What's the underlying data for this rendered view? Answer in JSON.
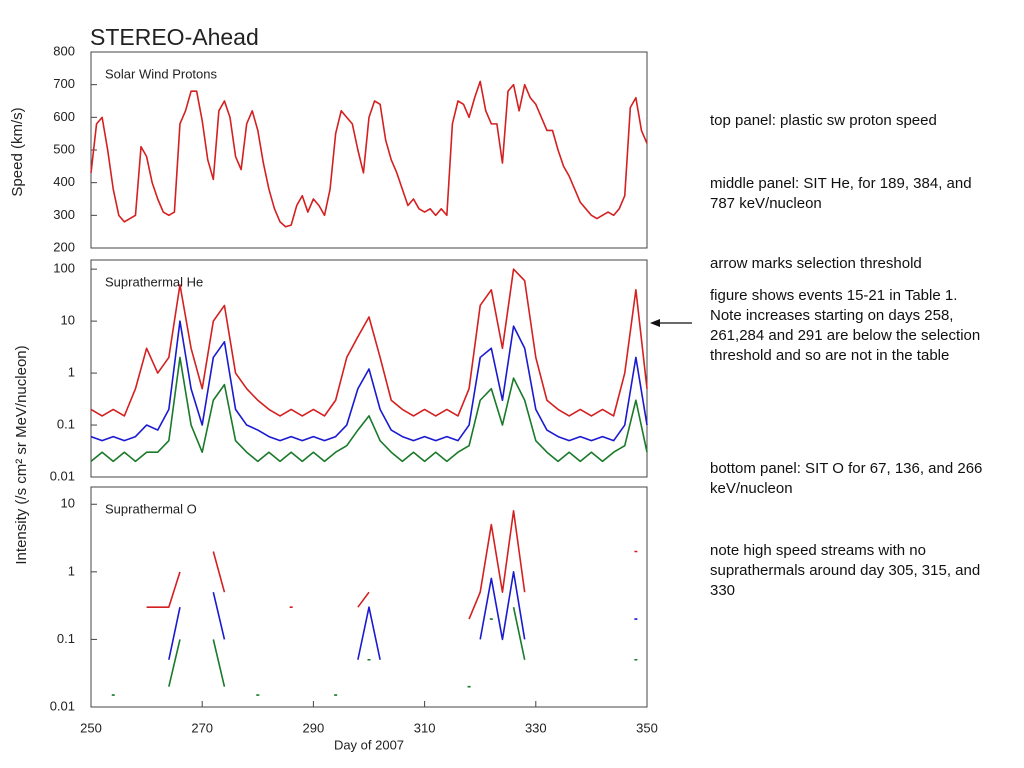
{
  "title": "STEREO-Ahead",
  "notes": [
    "top panel: plastic sw proton speed",
    "middle panel:  SIT He, for 189, 384, and 787 keV/nucleon",
    "arrow marks selection threshold",
    "figure shows events 15-21 in Table 1.  Note increases starting on days 258, 261,284 and 291 are below the selection threshold and so are not in the table",
    "bottom panel:  SIT O for 67, 136, and 266 keV/nucleon",
    "note high speed streams with no suprathermals around day 305, 315, and 330"
  ],
  "chart_data": [
    {
      "type": "line",
      "panel_label": "Solar Wind Protons",
      "y_label": "Speed (km/s)",
      "log": false,
      "xlim": [
        250,
        350
      ],
      "ylim": [
        200,
        800
      ],
      "yticks": [
        200,
        300,
        400,
        500,
        600,
        700,
        800
      ],
      "x": [
        250,
        251,
        252,
        253,
        254,
        255,
        256,
        257,
        258,
        259,
        260,
        261,
        262,
        263,
        264,
        265,
        266,
        267,
        268,
        269,
        270,
        271,
        272,
        273,
        274,
        275,
        276,
        277,
        278,
        279,
        280,
        281,
        282,
        283,
        284,
        285,
        286,
        287,
        288,
        289,
        290,
        291,
        292,
        293,
        294,
        295,
        296,
        297,
        298,
        299,
        300,
        301,
        302,
        303,
        304,
        305,
        306,
        307,
        308,
        309,
        310,
        311,
        312,
        313,
        314,
        315,
        316,
        317,
        318,
        319,
        320,
        321,
        322,
        323,
        324,
        325,
        326,
        327,
        328,
        329,
        330,
        331,
        332,
        333,
        334,
        335,
        336,
        337,
        338,
        339,
        340,
        341,
        342,
        343,
        344,
        345,
        346,
        347,
        348,
        349,
        350
      ],
      "series": [
        {
          "color": "#d42020",
          "values": [
            430,
            580,
            600,
            500,
            380,
            300,
            280,
            290,
            300,
            510,
            480,
            400,
            350,
            310,
            300,
            310,
            580,
            620,
            680,
            680,
            590,
            470,
            410,
            620,
            650,
            600,
            480,
            440,
            580,
            620,
            560,
            460,
            380,
            320,
            280,
            265,
            270,
            330,
            360,
            310,
            350,
            330,
            300,
            380,
            550,
            620,
            600,
            580,
            500,
            430,
            600,
            650,
            640,
            530,
            470,
            430,
            380,
            330,
            350,
            320,
            310,
            320,
            300,
            320,
            300,
            580,
            650,
            640,
            600,
            660,
            710,
            620,
            580,
            580,
            460,
            680,
            700,
            620,
            700,
            660,
            640,
            600,
            560,
            560,
            500,
            450,
            420,
            380,
            340,
            320,
            300,
            290,
            300,
            310,
            300,
            320,
            360,
            630,
            660,
            560,
            520
          ]
        }
      ]
    },
    {
      "type": "line",
      "panel_label": "Suprathermal He",
      "y_label": "Intensity (/s cm² sr MeV/nucleon)",
      "log": true,
      "xlim": [
        250,
        350
      ],
      "ylim": [
        0.01,
        150
      ],
      "yticks": [
        0.01,
        0.1,
        1,
        10,
        100
      ],
      "x": [
        250,
        252,
        254,
        256,
        258,
        260,
        262,
        264,
        266,
        268,
        270,
        272,
        274,
        276,
        278,
        280,
        282,
        284,
        286,
        288,
        290,
        292,
        294,
        296,
        298,
        300,
        302,
        304,
        306,
        308,
        310,
        312,
        314,
        316,
        318,
        320,
        322,
        324,
        326,
        328,
        330,
        332,
        334,
        336,
        338,
        340,
        342,
        344,
        346,
        348,
        350
      ],
      "series": [
        {
          "color": "#d42020",
          "values": [
            0.2,
            0.15,
            0.2,
            0.15,
            0.5,
            3,
            1,
            2,
            50,
            3,
            0.5,
            10,
            20,
            1,
            0.5,
            0.3,
            0.2,
            0.15,
            0.2,
            0.15,
            0.2,
            0.15,
            0.3,
            2,
            5,
            12,
            2,
            0.3,
            0.2,
            0.15,
            0.2,
            0.15,
            0.2,
            0.15,
            0.5,
            20,
            40,
            3,
            100,
            60,
            2,
            0.3,
            0.2,
            0.15,
            0.2,
            0.15,
            0.2,
            0.15,
            1,
            40,
            0.5
          ]
        },
        {
          "color": "#1a1ad0",
          "values": [
            0.06,
            0.05,
            0.06,
            0.05,
            0.06,
            0.1,
            0.08,
            0.2,
            10,
            0.5,
            0.1,
            2,
            4,
            0.2,
            0.1,
            0.08,
            0.06,
            0.05,
            0.06,
            0.05,
            0.06,
            0.05,
            0.06,
            0.1,
            0.5,
            1.2,
            0.2,
            0.08,
            0.06,
            0.05,
            0.06,
            0.05,
            0.06,
            0.05,
            0.1,
            2,
            3,
            0.3,
            8,
            3,
            0.2,
            0.08,
            0.06,
            0.05,
            0.06,
            0.05,
            0.06,
            0.05,
            0.1,
            2,
            0.1
          ]
        },
        {
          "color": "#1a7a2a",
          "values": [
            0.02,
            0.03,
            0.02,
            0.03,
            0.02,
            0.03,
            0.03,
            0.05,
            2,
            0.1,
            0.03,
            0.3,
            0.6,
            0.05,
            0.03,
            0.02,
            0.03,
            0.02,
            0.03,
            0.02,
            0.03,
            0.02,
            0.03,
            0.04,
            0.08,
            0.15,
            0.05,
            0.03,
            0.02,
            0.03,
            0.02,
            0.03,
            0.02,
            0.03,
            0.04,
            0.3,
            0.5,
            0.1,
            0.8,
            0.3,
            0.05,
            0.03,
            0.02,
            0.03,
            0.02,
            0.03,
            0.02,
            0.03,
            0.04,
            0.3,
            0.03
          ]
        }
      ]
    },
    {
      "type": "line",
      "panel_label": "Suprathermal O",
      "x_label": "Day of 2007",
      "log": true,
      "xlim": [
        250,
        350
      ],
      "xticks": [
        250,
        270,
        290,
        310,
        330,
        350
      ],
      "ylim": [
        0.01,
        18
      ],
      "yticks": [
        0.01,
        0.1,
        1,
        10
      ],
      "x": [
        250,
        252,
        254,
        256,
        258,
        260,
        262,
        264,
        266,
        268,
        270,
        272,
        274,
        276,
        278,
        280,
        282,
        284,
        286,
        288,
        290,
        292,
        294,
        296,
        298,
        300,
        302,
        304,
        306,
        308,
        310,
        312,
        314,
        316,
        318,
        320,
        322,
        324,
        326,
        328,
        330,
        332,
        334,
        336,
        338,
        340,
        342,
        344,
        346,
        348,
        350
      ],
      "series": [
        {
          "color": "#d42020",
          "values": [
            null,
            null,
            null,
            null,
            null,
            0.3,
            0.3,
            0.3,
            1,
            null,
            null,
            2,
            0.5,
            null,
            null,
            null,
            null,
            null,
            0.3,
            null,
            null,
            null,
            null,
            null,
            0.3,
            0.5,
            null,
            null,
            null,
            null,
            null,
            null,
            null,
            null,
            0.2,
            0.5,
            5,
            0.5,
            8,
            0.5,
            null,
            null,
            null,
            null,
            null,
            null,
            null,
            null,
            null,
            2,
            null
          ]
        },
        {
          "color": "#1a1ad0",
          "values": [
            null,
            null,
            null,
            null,
            null,
            null,
            null,
            0.05,
            0.3,
            null,
            null,
            0.5,
            0.1,
            null,
            null,
            null,
            null,
            null,
            null,
            null,
            null,
            null,
            null,
            null,
            0.05,
            0.3,
            0.05,
            null,
            null,
            null,
            null,
            null,
            null,
            null,
            null,
            0.1,
            0.8,
            0.1,
            1,
            0.1,
            null,
            null,
            null,
            null,
            null,
            null,
            null,
            null,
            null,
            0.2,
            null
          ]
        },
        {
          "color": "#1a7a2a",
          "values": [
            null,
            null,
            0.015,
            null,
            null,
            null,
            null,
            0.02,
            0.1,
            null,
            null,
            0.1,
            0.02,
            null,
            null,
            0.015,
            null,
            null,
            null,
            null,
            null,
            null,
            0.015,
            null,
            null,
            0.05,
            null,
            null,
            null,
            null,
            null,
            null,
            null,
            null,
            0.02,
            null,
            0.2,
            null,
            0.3,
            0.05,
            null,
            null,
            null,
            null,
            null,
            null,
            null,
            null,
            null,
            0.05,
            null
          ]
        }
      ]
    }
  ]
}
